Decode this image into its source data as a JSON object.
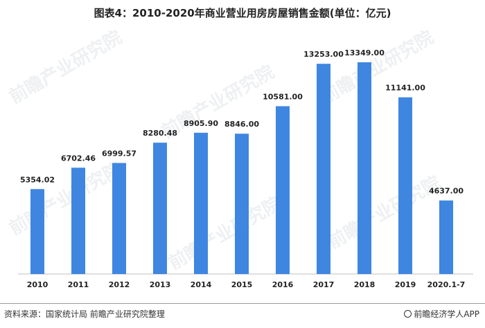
{
  "chart_data": {
    "type": "bar",
    "title": "图表4：2010-2020年商业营业用房房屋销售金额(单位：亿元)",
    "categories": [
      "2010",
      "2011",
      "2012",
      "2013",
      "2014",
      "2015",
      "2016",
      "2017",
      "2018",
      "2019",
      "2020.1-7"
    ],
    "values": [
      5354.02,
      6702.46,
      6999.57,
      8280.48,
      8905.9,
      8846.0,
      10581.0,
      13253.0,
      13349.0,
      11141.0,
      4637.0
    ],
    "value_labels": [
      "5354.02",
      "6702.46",
      "6999.57",
      "8280.48",
      "8905.90",
      "8846.00",
      "10581.00",
      "13253.00",
      "13349.00",
      "11141.00",
      "4637.00"
    ],
    "xlabel": "",
    "ylabel": "",
    "ylim": [
      0,
      14000
    ],
    "grid": false,
    "bar_color": "#3f86e0"
  },
  "footer": {
    "source": "资料来源：国家统计局 前瞻产业研究院整理",
    "brand": "前瞻经济学人APP"
  },
  "watermark": "前瞻产业研究院"
}
